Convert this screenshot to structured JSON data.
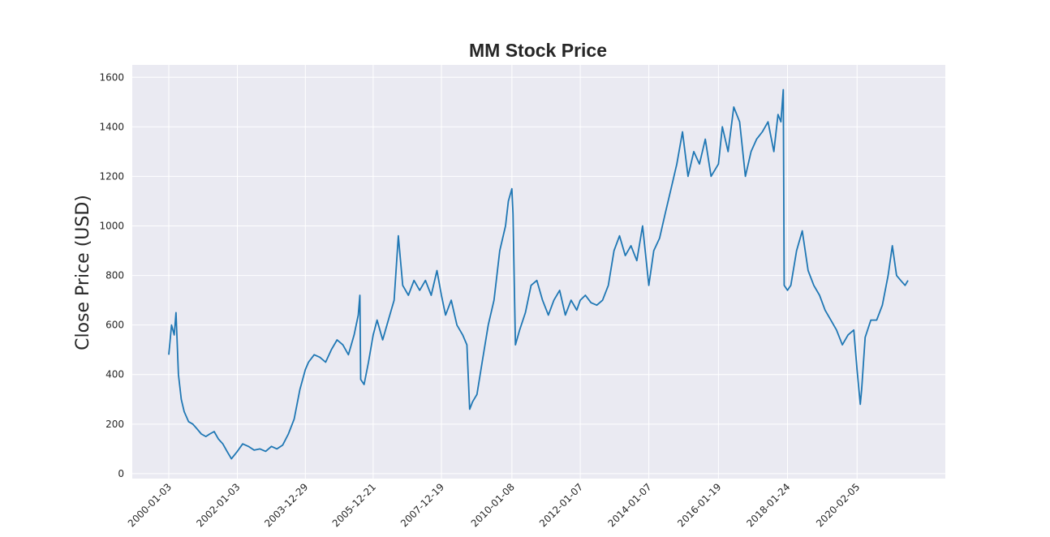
{
  "chart_data": {
    "type": "line",
    "title": "MM Stock Price",
    "xlabel": "",
    "ylabel": "Close Price (USD)",
    "ylim": [
      -20,
      1650
    ],
    "yticks": [
      0,
      200,
      400,
      600,
      800,
      1000,
      1200,
      1400,
      1600
    ],
    "xticks": [
      "2000-01-03",
      "2002-01-03",
      "2003-12-29",
      "2005-12-21",
      "2007-12-19",
      "2010-01-08",
      "2012-01-07",
      "2014-01-07",
      "2016-01-19",
      "2018-01-24",
      "2020-02-05"
    ],
    "grid": true,
    "legend": "none",
    "colors": {
      "background": "#eaeaf2",
      "grid": "#ffffff",
      "line": "#1f77b4",
      "text": "#262626"
    },
    "series": [
      {
        "x": [
          "2000-01-03",
          "2000-02-01",
          "2000-03-01",
          "2000-03-20",
          "2000-04-15",
          "2000-05-15",
          "2000-06-15",
          "2000-08-01",
          "2000-09-15",
          "2000-11-01",
          "2000-12-15",
          "2001-02-01",
          "2001-03-15",
          "2001-05-01",
          "2001-06-15",
          "2001-08-01",
          "2001-09-15",
          "2001-11-01",
          "2002-01-03",
          "2002-03-01",
          "2002-05-01",
          "2002-07-01",
          "2002-09-01",
          "2002-11-01",
          "2003-01-01",
          "2003-03-01",
          "2003-05-01",
          "2003-07-01",
          "2003-09-01",
          "2003-11-01",
          "2003-12-29",
          "2004-02-01",
          "2004-04-01",
          "2004-06-01",
          "2004-08-01",
          "2004-10-01",
          "2004-12-01",
          "2005-02-01",
          "2005-04-01",
          "2005-06-01",
          "2005-07-15",
          "2005-08-01",
          "2005-08-10",
          "2005-09-15",
          "2005-11-01",
          "2005-12-21",
          "2006-02-01",
          "2006-04-01",
          "2006-06-01",
          "2006-08-01",
          "2006-09-15",
          "2006-11-01",
          "2007-01-01",
          "2007-03-01",
          "2007-05-01",
          "2007-07-01",
          "2007-09-01",
          "2007-11-01",
          "2007-12-19",
          "2008-02-01",
          "2008-04-01",
          "2008-06-01",
          "2008-08-01",
          "2008-09-15",
          "2008-10-15",
          "2008-11-15",
          "2009-01-01",
          "2009-03-01",
          "2009-05-01",
          "2009-07-01",
          "2009-09-01",
          "2009-11-01",
          "2009-12-01",
          "2010-01-08",
          "2010-01-20",
          "2010-02-15",
          "2010-04-01",
          "2010-06-01",
          "2010-08-01",
          "2010-10-01",
          "2010-12-01",
          "2011-02-01",
          "2011-04-01",
          "2011-06-01",
          "2011-08-01",
          "2011-10-01",
          "2011-12-01",
          "2012-01-07",
          "2012-03-01",
          "2012-05-01",
          "2012-07-01",
          "2012-09-01",
          "2012-11-01",
          "2013-01-01",
          "2013-03-01",
          "2013-05-01",
          "2013-07-01",
          "2013-09-01",
          "2013-11-01",
          "2014-01-07",
          "2014-03-01",
          "2014-05-01",
          "2014-07-01",
          "2014-09-01",
          "2014-11-01",
          "2015-01-01",
          "2015-03-01",
          "2015-05-01",
          "2015-07-01",
          "2015-09-01",
          "2015-11-01",
          "2016-01-19",
          "2016-03-01",
          "2016-05-01",
          "2016-07-01",
          "2016-09-01",
          "2016-11-01",
          "2017-01-01",
          "2017-03-01",
          "2017-05-01",
          "2017-07-01",
          "2017-09-01",
          "2017-10-15",
          "2017-11-15",
          "2017-12-10",
          "2017-12-20",
          "2018-01-24",
          "2018-03-01",
          "2018-05-01",
          "2018-07-01",
          "2018-09-01",
          "2018-11-01",
          "2019-01-01",
          "2019-03-01",
          "2019-05-01",
          "2019-07-01",
          "2019-09-01",
          "2019-11-01",
          "2020-01-01",
          "2020-02-05",
          "2020-03-10",
          "2020-03-25",
          "2020-05-01",
          "2020-07-01",
          "2020-09-01",
          "2020-11-01",
          "2021-01-01",
          "2021-02-15",
          "2021-04-01",
          "2021-05-15",
          "2021-07-01",
          "2021-08-01"
        ],
        "y": [
          480,
          600,
          560,
          650,
          400,
          300,
          250,
          210,
          200,
          180,
          160,
          150,
          160,
          170,
          140,
          120,
          90,
          60,
          90,
          120,
          110,
          95,
          100,
          90,
          110,
          100,
          115,
          160,
          220,
          340,
          420,
          450,
          480,
          470,
          450,
          500,
          540,
          520,
          480,
          560,
          640,
          720,
          380,
          360,
          450,
          560,
          620,
          540,
          620,
          700,
          960,
          760,
          720,
          780,
          740,
          780,
          720,
          820,
          720,
          640,
          700,
          600,
          560,
          520,
          260,
          290,
          320,
          460,
          600,
          700,
          900,
          1000,
          1100,
          1150,
          1050,
          520,
          580,
          650,
          760,
          780,
          700,
          640,
          700,
          740,
          640,
          700,
          660,
          700,
          720,
          690,
          680,
          700,
          760,
          900,
          960,
          880,
          920,
          860,
          1000,
          760,
          900,
          950,
          1050,
          1150,
          1250,
          1380,
          1200,
          1300,
          1250,
          1350,
          1200,
          1250,
          1400,
          1300,
          1480,
          1420,
          1200,
          1300,
          1350,
          1380,
          1420,
          1300,
          1450,
          1420,
          1550,
          760,
          740,
          760,
          900,
          980,
          820,
          760,
          720,
          660,
          620,
          580,
          520,
          560,
          580,
          420,
          280,
          340,
          550,
          620,
          620,
          680,
          800,
          920,
          800,
          780,
          760,
          780
        ]
      }
    ]
  }
}
